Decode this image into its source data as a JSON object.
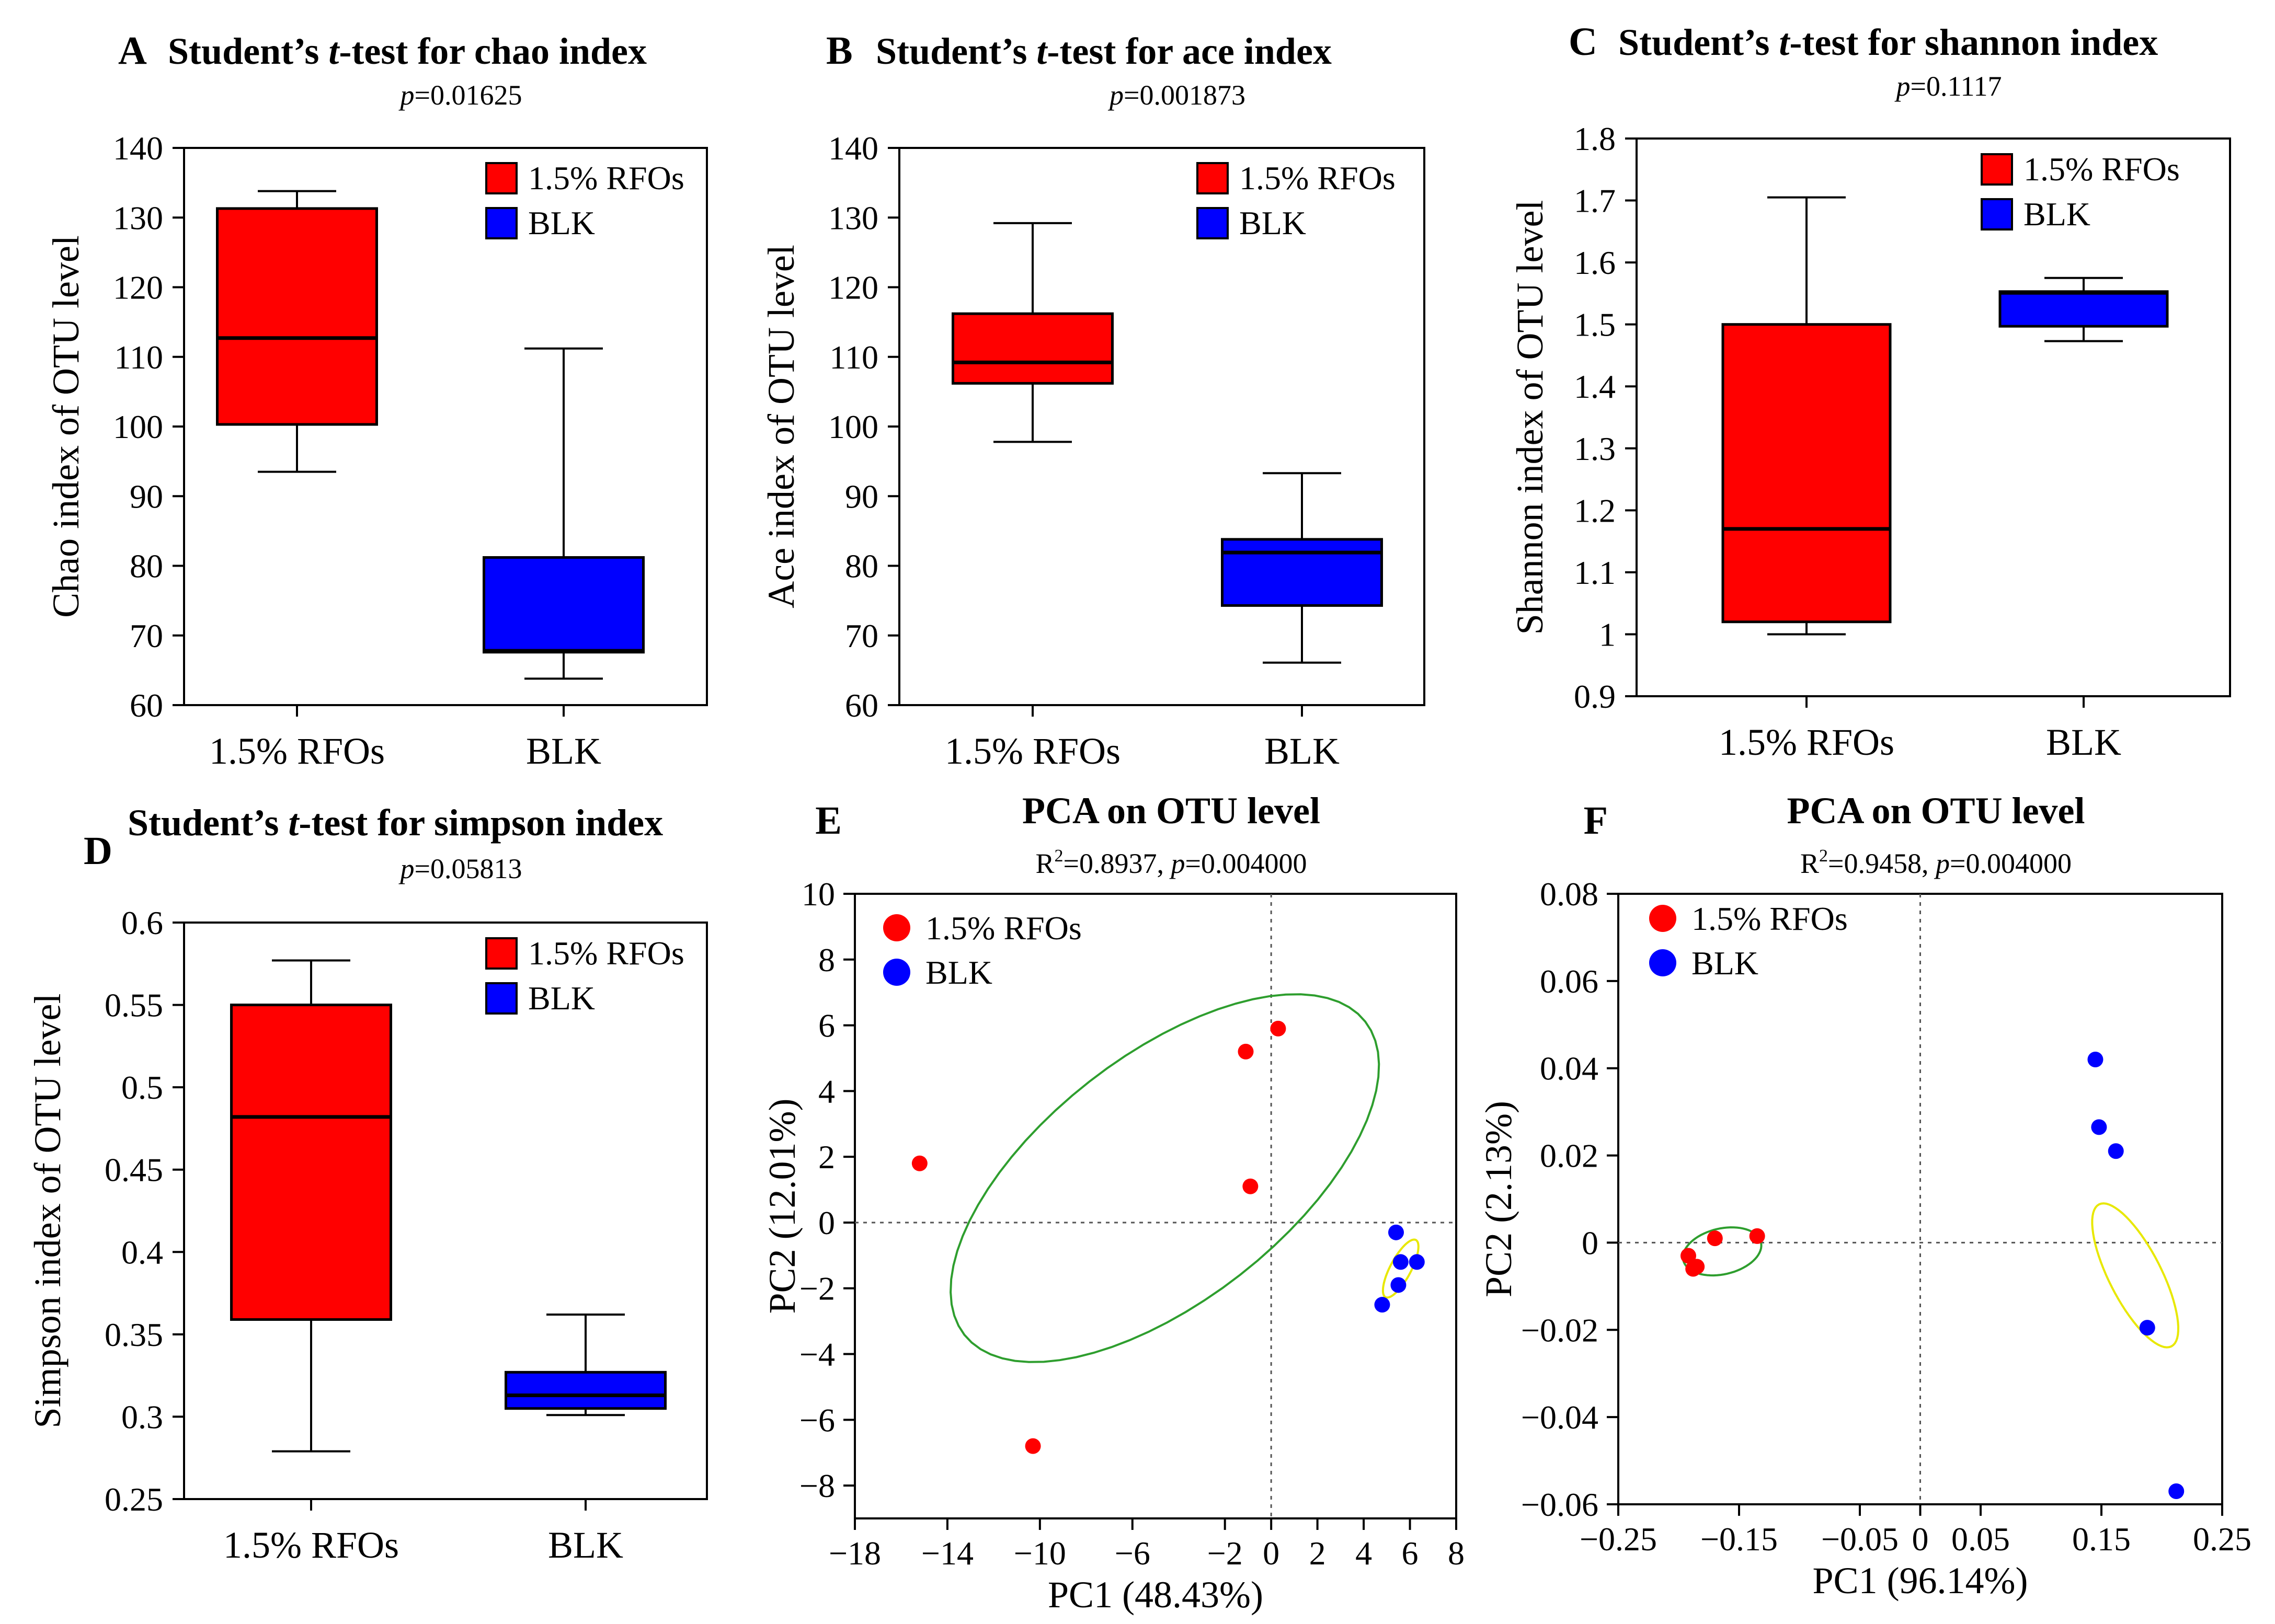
{
  "chart_data": [
    {
      "panel": "A",
      "type": "box",
      "title_pre": "Student’s ",
      "title_italic": "t",
      "title_post": "-test for chao index",
      "p_text": "=0.01625",
      "ylabel": "Chao index of OTU level",
      "ylim": [
        60,
        140
      ],
      "yticks": [
        "60",
        "70",
        "80",
        "90",
        "100",
        "110",
        "120",
        "130",
        "140"
      ],
      "categories": [
        "1.5% RFOs",
        "BLK"
      ],
      "boxes": [
        {
          "name": "1.5% RFOs",
          "min": 93.5,
          "q1": 100.3,
          "median": 112.7,
          "q3": 131.3,
          "max": 133.8,
          "color": "#ff0000"
        },
        {
          "name": "BLK",
          "min": 63.8,
          "q1": 67.6,
          "median": 67.8,
          "q3": 81.2,
          "max": 111.2,
          "color": "#0000ff"
        }
      ],
      "legend": [
        {
          "label": "1.5% RFOs",
          "color": "#ff0000"
        },
        {
          "label": "BLK",
          "color": "#0000ff"
        }
      ]
    },
    {
      "panel": "B",
      "type": "box",
      "title_pre": "Student’s ",
      "title_italic": "t",
      "title_post": "-test for ace index",
      "p_text": "=0.001873",
      "ylabel": "Ace index of OTU level",
      "ylim": [
        60,
        140
      ],
      "yticks": [
        "60",
        "70",
        "80",
        "90",
        "100",
        "110",
        "120",
        "130",
        "140"
      ],
      "categories": [
        "1.5% RFOs",
        "BLK"
      ],
      "boxes": [
        {
          "name": "1.5% RFOs",
          "min": 97.8,
          "q1": 106.2,
          "median": 109.2,
          "q3": 116.2,
          "max": 129.2,
          "color": "#ff0000"
        },
        {
          "name": "BLK",
          "min": 66.1,
          "q1": 74.3,
          "median": 81.9,
          "q3": 83.8,
          "max": 93.3,
          "color": "#0000ff"
        }
      ],
      "legend": [
        {
          "label": "1.5% RFOs",
          "color": "#ff0000"
        },
        {
          "label": "BLK",
          "color": "#0000ff"
        }
      ]
    },
    {
      "panel": "C",
      "type": "box",
      "title_pre": "Student’s ",
      "title_italic": "t",
      "title_post": "-test for shannon index",
      "p_text": "=0.1117",
      "ylabel": "Shannon index of OTU level",
      "ylim": [
        0.9,
        1.8
      ],
      "yticks": [
        "0.9",
        "1",
        "1.1",
        "1.2",
        "1.3",
        "1.4",
        "1.5",
        "1.6",
        "1.7",
        "1.8"
      ],
      "categories": [
        "1.5% RFOs",
        "BLK"
      ],
      "boxes": [
        {
          "name": "1.5% RFOs",
          "min": 1.0,
          "q1": 1.02,
          "median": 1.17,
          "q3": 1.5,
          "max": 1.705,
          "color": "#ff0000"
        },
        {
          "name": "BLK",
          "min": 1.473,
          "q1": 1.497,
          "median": 1.551,
          "q3": 1.553,
          "max": 1.575,
          "color": "#0000ff"
        }
      ],
      "legend": [
        {
          "label": "1.5% RFOs",
          "color": "#ff0000"
        },
        {
          "label": "BLK",
          "color": "#0000ff"
        }
      ]
    },
    {
      "panel": "D",
      "type": "box",
      "title_pre": "Student’s ",
      "title_italic": "t",
      "title_post": "-test for simpson index",
      "p_text": "=0.05813",
      "ylabel": "Simpson index of OTU level",
      "ylim": [
        0.25,
        0.6
      ],
      "yticks": [
        "0.25",
        "0.3",
        "0.35",
        "0.4",
        "0.45",
        "0.5",
        "0.55",
        "0.6"
      ],
      "categories": [
        "1.5% RFOs",
        "BLK"
      ],
      "boxes": [
        {
          "name": "1.5% RFOs",
          "min": 0.279,
          "q1": 0.359,
          "median": 0.482,
          "q3": 0.55,
          "max": 0.577,
          "color": "#ff0000"
        },
        {
          "name": "BLK",
          "min": 0.301,
          "q1": 0.305,
          "median": 0.313,
          "q3": 0.327,
          "max": 0.362,
          "color": "#0000ff"
        }
      ],
      "legend": [
        {
          "label": "1.5% RFOs",
          "color": "#ff0000"
        },
        {
          "label": "BLK",
          "color": "#0000ff"
        }
      ]
    },
    {
      "panel": "E",
      "type": "scatter",
      "title": "PCA on OTU level",
      "r2_text": "=0.8937, ",
      "p_text": "=0.004000",
      "xlabel": "PC1 (48.43%)",
      "ylabel": "PC2 (12.01%)",
      "xlim": [
        -18,
        8
      ],
      "ylim": [
        -9,
        10
      ],
      "xticks": [
        -18,
        -14,
        -10,
        -6,
        -2,
        0,
        2,
        4,
        6,
        8
      ],
      "xtick_labels": [
        "−18",
        "−14",
        "−10",
        "−6",
        "−2",
        "0",
        "2",
        "4",
        "6",
        "8"
      ],
      "yticks": [
        -8,
        -6,
        -4,
        -2,
        0,
        2,
        4,
        6,
        8,
        10
      ],
      "ytick_labels": [
        "−8",
        "−6",
        "−4",
        "−2",
        "0",
        "2",
        "4",
        "6",
        "8",
        "10"
      ],
      "series": [
        {
          "name": "1.5% RFOs",
          "color": "#ff0000",
          "points": [
            [
              -15.2,
              1.8
            ],
            [
              -1.1,
              5.2
            ],
            [
              0.3,
              5.9
            ],
            [
              -0.9,
              1.1
            ],
            [
              -10.3,
              -6.8
            ]
          ],
          "ellipse": {
            "cx": -4.6,
            "cy": 1.35,
            "a": 11.0,
            "b": 5.3,
            "angle": 38,
            "color": "#2e9e2e"
          }
        },
        {
          "name": "BLK",
          "color": "#0000ff",
          "points": [
            [
              5.4,
              -0.3
            ],
            [
              5.6,
              -1.2
            ],
            [
              6.3,
              -1.2
            ],
            [
              5.5,
              -1.9
            ],
            [
              4.8,
              -2.5
            ]
          ],
          "ellipse": {
            "cx": 5.6,
            "cy": -1.4,
            "a": 1.4,
            "b": 0.45,
            "angle": 62,
            "color": "#e8e800"
          }
        }
      ],
      "legend": [
        {
          "label": "1.5% RFOs",
          "color": "#ff0000"
        },
        {
          "label": "BLK",
          "color": "#0000ff"
        }
      ]
    },
    {
      "panel": "F",
      "type": "scatter",
      "title": "PCA on OTU level",
      "r2_text": "=0.9458, ",
      "p_text": "=0.004000",
      "xlabel": "PC1 (96.14%)",
      "ylabel": "PC2 (2.13%)",
      "xlim": [
        -0.25,
        0.25
      ],
      "ylim": [
        -0.06,
        0.08
      ],
      "xticks": [
        -0.25,
        -0.15,
        -0.05,
        0,
        0.05,
        0.15,
        0.25
      ],
      "xtick_labels": [
        "−0.25",
        "−0.15",
        "−0.05",
        "0",
        "0.05",
        "0.15",
        "0.25"
      ],
      "yticks": [
        -0.06,
        -0.04,
        -0.02,
        0,
        0.02,
        0.04,
        0.06,
        0.08
      ],
      "ytick_labels": [
        "−0.06",
        "−0.04",
        "−0.02",
        "0",
        "0.02",
        "0.04",
        "0.06",
        "0.08"
      ],
      "series": [
        {
          "name": "1.5% RFOs",
          "color": "#ff0000",
          "points": [
            [
              -0.192,
              -0.003
            ],
            [
              -0.188,
              -0.006
            ],
            [
              -0.185,
              -0.0055
            ],
            [
              -0.17,
              0.001
            ],
            [
              -0.135,
              0.0015
            ]
          ],
          "ellipse": {
            "cx": -0.164,
            "cy": -0.002,
            "a": 0.033,
            "b": 0.0035,
            "angle": 13,
            "color": "#2e9e2e"
          }
        },
        {
          "name": "BLK",
          "color": "#0000ff",
          "points": [
            [
              0.145,
              0.042
            ],
            [
              0.148,
              0.0265
            ],
            [
              0.162,
              0.021
            ],
            [
              0.188,
              -0.0195
            ],
            [
              0.212,
              -0.057
            ]
          ],
          "ellipse": {
            "cx": 0.178,
            "cy": -0.0075,
            "a": 0.066,
            "b": 0.004,
            "angle": -63,
            "color": "#e8e800"
          }
        }
      ],
      "legend": [
        {
          "label": "1.5% RFOs",
          "color": "#ff0000"
        },
        {
          "label": "BLK",
          "color": "#0000ff"
        }
      ]
    }
  ]
}
